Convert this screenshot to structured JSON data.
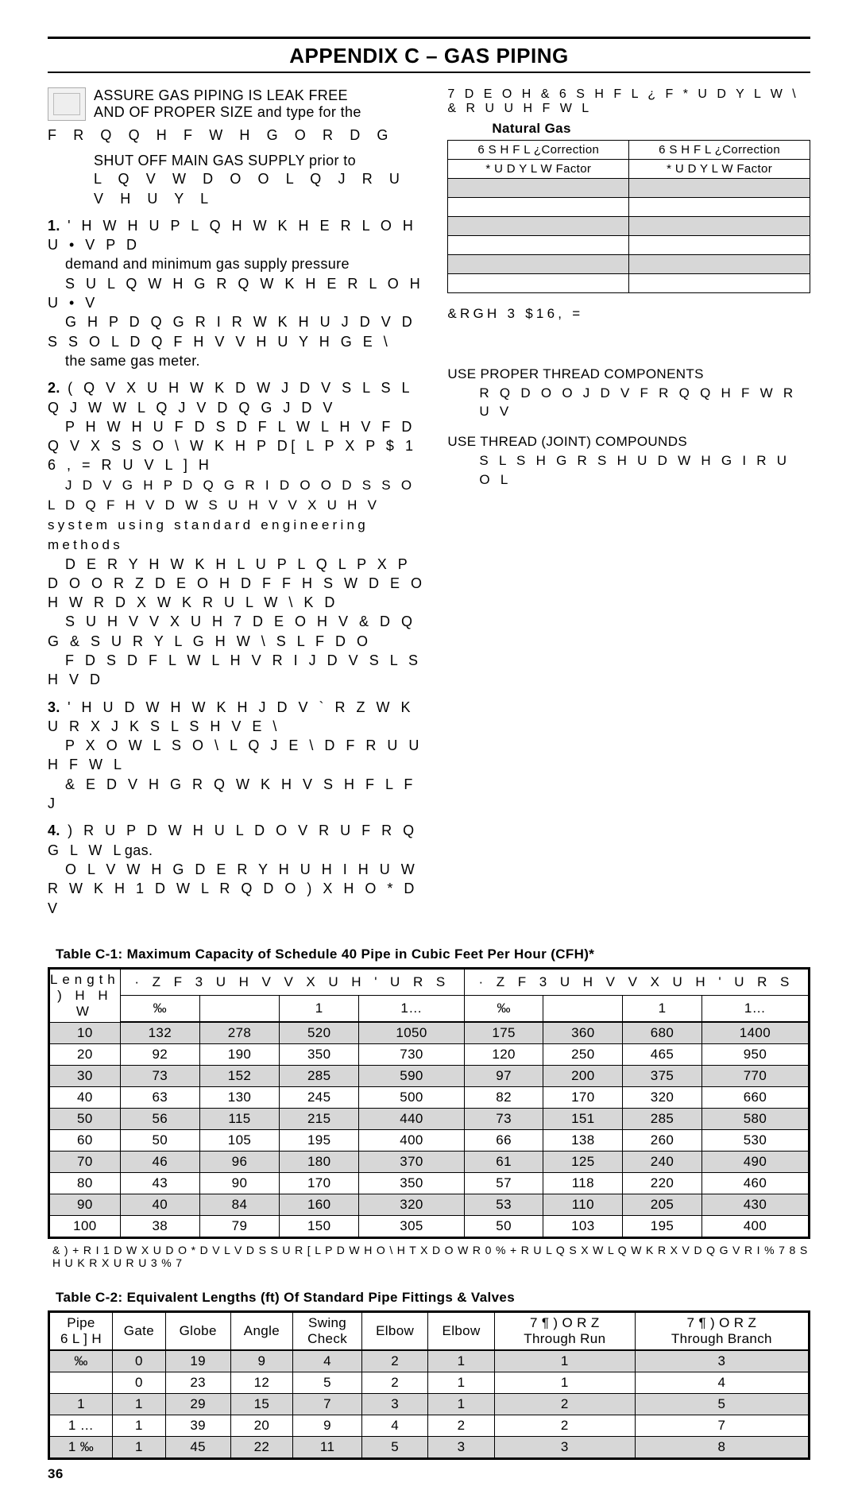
{
  "page": {
    "title": "APPENDIX C – GAS PIPING",
    "number": "36"
  },
  "left": {
    "warn1_a": "ASSURE GAS PIPING IS LEAK FREE",
    "warn1_b": "AND OF PROPER SIZE and type for the",
    "warn1_c": "F R Q Q H F W H G   O R D G",
    "warn2_a": "SHUT OFF MAIN GAS SUPPLY prior to",
    "warn2_b": "L Q V W D O O L Q J   R U   V H U Y L",
    "p1_a": "' H W H U P L Q H   W K H   E R L O H U • V   P D",
    "p1_b": "demand and minimum gas supply pressure",
    "p1_c": "S U L Q W H G   R Q   W K H   E R L O H U • V",
    "p1_d": "G H P D Q G   R I   R W K H U   J D V   D S S O L D Q F H V   V H U Y H G   E \\",
    "p1_e": "the same gas meter.",
    "p2_a": "( Q V X U H   W K D W   J D V   S L S L Q J       W W L Q J V     D Q G   J D V",
    "p2_b": "P H W H U   F D S D F L W L H V   F D Q   V X S S O \\  W K H   P D[ L P X P   $ 1 6 ,   =             R U   V L ] H",
    "p2_c": "J D V   G H P D Q G   R I   D O O   D S S O L D Q F H V  D W  S U H V V X U H V  system using standard engineering methods",
    "p2_d": "D E R Y H   W K H L U   P L Q L P X P   D O O R Z D E O H  D F F H S W D E O H  W R  D X W K R U L W \\  K D",
    "p2_e": "S U H V V X U H    7 D E O H V   &       D Q G   &       S U R Y L G H   W \\ S L F D O",
    "p2_f": "F D S D F L W L H V   R I   J D V   S L S H V   D",
    "p3_a": "' H U D W H   W K H   J D V   ` R Z   W K U R X J K  S L S H V  E \\",
    "p3_b": "P X O W L S O \\ L Q J   E \\   D   F R U U H F W L",
    "p3_c": "&       E D V H G   R Q   W K H   V S H F L  F   J",
    "p4_a": ") R U   P D W H U L D O V   R U   F R Q G L W L",
    "p4_b": "O L V W H G   D E R Y H     U H I H U   W R   W K H   1 D W L R Q D O   ) X H O   * D V"
  },
  "right": {
    "hdr_garble": "7 D E O H   &         6 S H F L ¿ F   * U D Y L W \\   & R U U H F W L",
    "nat_gas": "Natural Gas",
    "col_a1": "6 S H F L ¿Correction",
    "col_a2": "* U D Y L W Factor",
    "col_b1": "6 S H F L ¿Correction",
    "col_b2": "* U D Y L W Factor",
    "code_line": " &RGH  3 $16,  =",
    "use_proper": "USE PROPER THREAD COMPONENTS",
    "on_all": "R Q   D O O   J D V   F R Q Q H F W R U V",
    "use_joint": "USE THREAD (JOINT) COMPOUNDS",
    "pipe_dope": "S L S H   G R S H    U D W H G   I R U   O L",
    "gas": "gas."
  },
  "tableC1": {
    "caption": "Table C-1:  Maximum Capacity of Schedule 40 Pipe in Cubic Feet Per Hour (CFH)*",
    "len_hdr1": "Length",
    "len_hdr2": ") H H W",
    "group_a": "·   Z  F     3 U H V V X U H   ' U R S",
    "group_b": "·   Z  F     3 U H V V X U H   ' U R S",
    "sizes_a": [
      "‰",
      "",
      "1",
      "1…"
    ],
    "sizes_b": [
      "‰",
      "",
      "1",
      "1…"
    ],
    "rows": [
      {
        "len": "10",
        "a": [
          132,
          278,
          520,
          1050
        ],
        "b": [
          175,
          360,
          680,
          1400
        ]
      },
      {
        "len": "20",
        "a": [
          92,
          190,
          350,
          730
        ],
        "b": [
          120,
          250,
          465,
          950
        ]
      },
      {
        "len": "30",
        "a": [
          73,
          152,
          285,
          590
        ],
        "b": [
          97,
          200,
          375,
          770
        ]
      },
      {
        "len": "40",
        "a": [
          63,
          130,
          245,
          500
        ],
        "b": [
          82,
          170,
          320,
          660
        ]
      },
      {
        "len": "50",
        "a": [
          56,
          115,
          215,
          440
        ],
        "b": [
          73,
          151,
          285,
          580
        ]
      },
      {
        "len": "60",
        "a": [
          50,
          105,
          195,
          400
        ],
        "b": [
          66,
          138,
          260,
          530
        ]
      },
      {
        "len": "70",
        "a": [
          46,
          96,
          180,
          370
        ],
        "b": [
          61,
          125,
          240,
          490
        ]
      },
      {
        "len": "80",
        "a": [
          43,
          90,
          170,
          350
        ],
        "b": [
          57,
          118,
          220,
          460
        ]
      },
      {
        "len": "90",
        "a": [
          40,
          84,
          160,
          320
        ],
        "b": [
          53,
          110,
          205,
          430
        ]
      },
      {
        "len": "100",
        "a": [
          38,
          79,
          150,
          305
        ],
        "b": [
          50,
          103,
          195,
          400
        ]
      }
    ],
    "footnote": "& ) +  R I  1 D W X U D O  * D V  L V  D S S U R [ L P D W H O \\  H T X D O  W R  0 % +  R U  L Q S X W  L Q  W K R X V D Q G V  R I  % 7 8  S H U  K R X U    R U  3  % 7"
  },
  "tableC2": {
    "caption": "Table C-2: Equivalent Lengths (ft) Of Standard Pipe Fittings & Valves",
    "pipe_hdr1": "Pipe",
    "pipe_hdr2": "6 L ] H",
    "cols": [
      "Gate",
      "Globe",
      "Angle",
      "Swing\nCheck",
      "Elbow",
      "Elbow",
      "7 ¶   ) O R Z\nThrough Run",
      "7 ¶   ) O R Z\nThrough Branch"
    ],
    "rows": [
      {
        "size": "‰",
        "v": [
          0,
          19,
          9,
          4,
          2,
          1,
          1,
          3
        ]
      },
      {
        "size": "",
        "v": [
          0,
          23,
          12,
          5,
          2,
          1,
          1,
          4
        ]
      },
      {
        "size": "1",
        "v": [
          1,
          29,
          15,
          7,
          3,
          1,
          2,
          5
        ]
      },
      {
        "size": "1 …",
        "v": [
          1,
          39,
          20,
          9,
          4,
          2,
          2,
          7
        ]
      },
      {
        "size": "1 ‰",
        "v": [
          1,
          45,
          22,
          11,
          5,
          3,
          3,
          8
        ]
      }
    ]
  }
}
